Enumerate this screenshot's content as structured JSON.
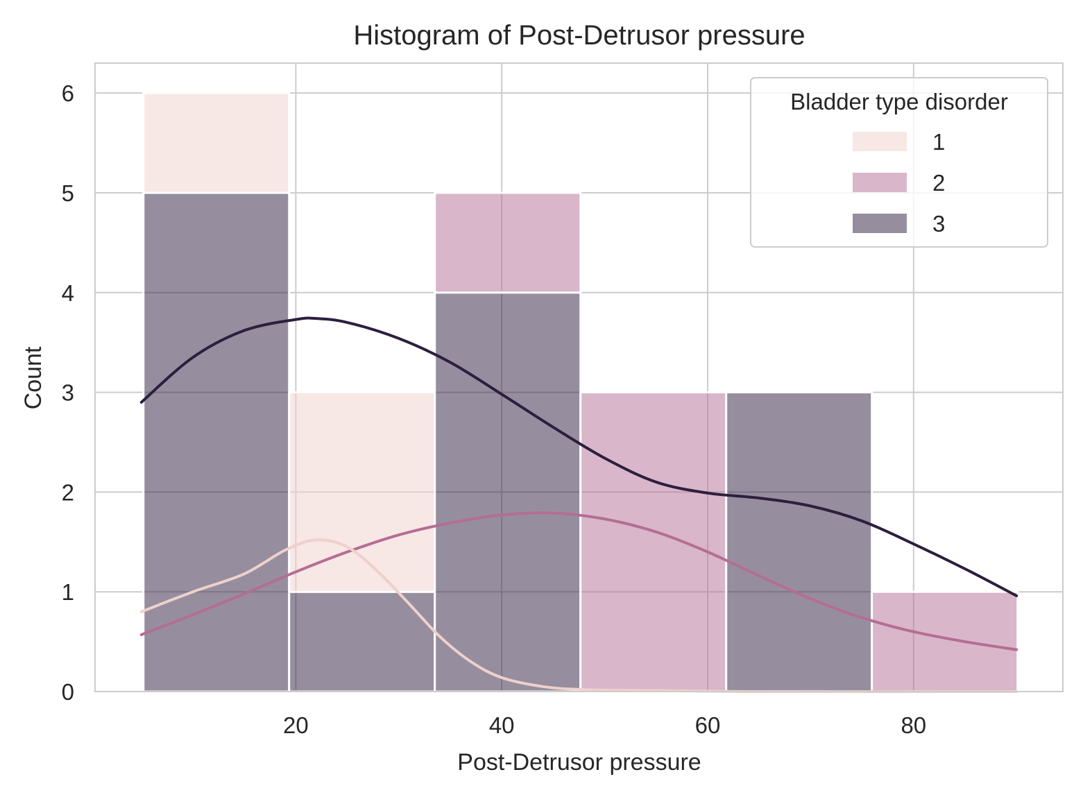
{
  "chart_data": {
    "type": "bar",
    "title": "Histogram of Post-Detrusor pressure",
    "xlabel": "Post-Detrusor pressure",
    "ylabel": "Count",
    "xlim": [
      0.5,
      94.5
    ],
    "ylim": [
      0,
      6.3
    ],
    "xticks": [
      20,
      40,
      60,
      80
    ],
    "yticks": [
      0,
      1,
      2,
      3,
      4,
      5,
      6
    ],
    "grid": true,
    "bin_edges": [
      5.2,
      19.35,
      33.5,
      47.65,
      61.8,
      75.95,
      90.1
    ],
    "legend": {
      "title": "Bladder type disorder",
      "placement": "top-right"
    },
    "series": [
      {
        "name": "1",
        "color": "#efd0cb",
        "counts": [
          1,
          2,
          0,
          0,
          0,
          0
        ],
        "kde": {
          "x": [
            5,
            10,
            15,
            19,
            22,
            25,
            28,
            31,
            34,
            37,
            40,
            44,
            48,
            55,
            65,
            90
          ],
          "y": [
            0.8,
            1.0,
            1.18,
            1.42,
            1.52,
            1.45,
            1.2,
            0.88,
            0.55,
            0.3,
            0.14,
            0.05,
            0.02,
            0.01,
            0.0,
            0.0
          ]
        }
      },
      {
        "name": "2",
        "color": "#b46d95",
        "counts": [
          0,
          0,
          1,
          3,
          0,
          1
        ],
        "kde": {
          "x": [
            5,
            10,
            15,
            20,
            25,
            30,
            35,
            40,
            45,
            50,
            55,
            60,
            65,
            70,
            75,
            80,
            85,
            90
          ],
          "y": [
            0.57,
            0.77,
            0.98,
            1.2,
            1.4,
            1.57,
            1.69,
            1.77,
            1.79,
            1.73,
            1.6,
            1.4,
            1.16,
            0.93,
            0.74,
            0.6,
            0.5,
            0.42
          ]
        }
      },
      {
        "name": "3",
        "color": "#2d1e3e",
        "counts": [
          5,
          1,
          4,
          0,
          3,
          0
        ],
        "kde": {
          "x": [
            5,
            10,
            15,
            20,
            22,
            25,
            30,
            35,
            40,
            45,
            50,
            55,
            60,
            65,
            70,
            75,
            80,
            85,
            90
          ],
          "y": [
            2.9,
            3.35,
            3.62,
            3.73,
            3.74,
            3.7,
            3.54,
            3.3,
            2.98,
            2.65,
            2.34,
            2.1,
            1.99,
            1.94,
            1.86,
            1.71,
            1.48,
            1.23,
            0.96
          ]
        }
      }
    ]
  }
}
